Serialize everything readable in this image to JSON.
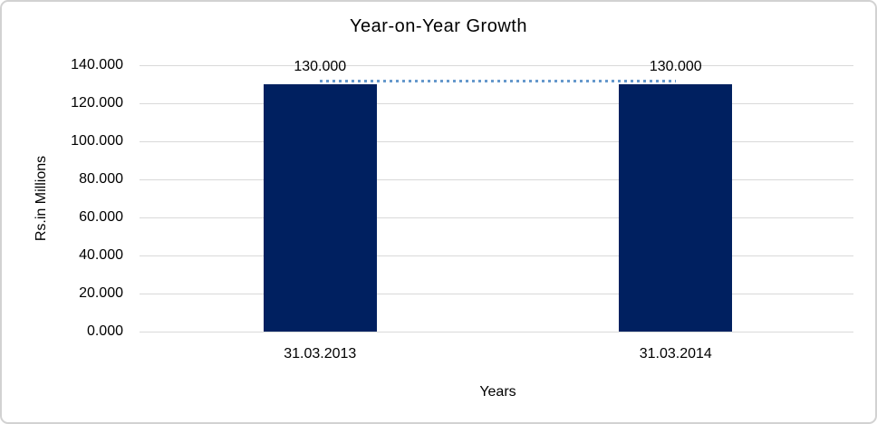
{
  "chart_data": {
    "type": "bar",
    "title": "Year-on-Year Growth",
    "xlabel": "Years",
    "ylabel": "Rs.in Millions",
    "categories": [
      "31.03.2013",
      "31.03.2014"
    ],
    "values": [
      130,
      130
    ],
    "value_labels": [
      "130.000",
      "130.000"
    ],
    "ylim": [
      0,
      140
    ],
    "ytick_values": [
      0,
      20,
      40,
      60,
      80,
      100,
      120,
      140
    ],
    "ytick_labels": [
      "0.000",
      "20.000",
      "40.000",
      "60.000",
      "80.000",
      "100.000",
      "120.000",
      "140.000"
    ],
    "grid": "horizontal",
    "legend": false,
    "trendline": {
      "style": "dotted",
      "values": [
        130,
        130
      ]
    },
    "colors": {
      "bar": "#002060",
      "trendline": "#6699cc",
      "gridline": "#d9d9d9",
      "frame_border": "#d2d2d2",
      "text": "#000000",
      "background": "#ffffff"
    }
  }
}
